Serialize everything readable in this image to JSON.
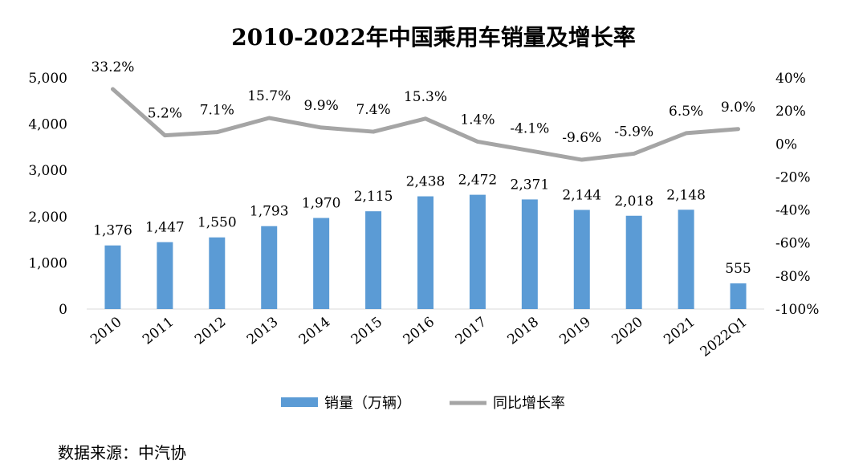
{
  "chart_data": {
    "type": "bar+line",
    "title": "2010-2022年中国乘用车销量及增长率",
    "categories": [
      "2010",
      "2011",
      "2012",
      "2013",
      "2014",
      "2015",
      "2016",
      "2017",
      "2018",
      "2019",
      "2020",
      "2021",
      "2022Q1"
    ],
    "series": [
      {
        "name": "销量（万辆）",
        "type": "bar",
        "axis": "left",
        "color": "#5B9BD5",
        "values": [
          1376,
          1447,
          1550,
          1793,
          1970,
          2115,
          2438,
          2472,
          2371,
          2144,
          2018,
          2148,
          555
        ],
        "labels": [
          "1,376",
          "1,447",
          "1,550",
          "1,793",
          "1,970",
          "2,115",
          "2,438",
          "2,472",
          "2,371",
          "2,144",
          "2,018",
          "2,148",
          "555"
        ]
      },
      {
        "name": "同比增长率",
        "type": "line",
        "axis": "right",
        "color": "#A5A5A5",
        "values": [
          33.2,
          5.2,
          7.1,
          15.7,
          9.9,
          7.4,
          15.3,
          1.4,
          -4.1,
          -9.6,
          -5.9,
          6.5,
          9.0
        ],
        "labels": [
          "33.2%",
          "5.2%",
          "7.1%",
          "15.7%",
          "9.9%",
          "7.4%",
          "15.3%",
          "1.4%",
          "-4.1%",
          "-9.6%",
          "-5.9%",
          "6.5%",
          "9.0%"
        ]
      }
    ],
    "y_left": {
      "range": [
        0,
        5000
      ],
      "ticks": [
        0,
        1000,
        2000,
        3000,
        4000,
        5000
      ],
      "tick_labels": [
        "0",
        "1,000",
        "2,000",
        "3,000",
        "4,000",
        "5,000"
      ]
    },
    "y_right": {
      "range": [
        -100,
        40
      ],
      "ticks": [
        -100,
        -80,
        -60,
        -40,
        -20,
        0,
        20,
        40
      ],
      "tick_labels": [
        "-100%",
        "-80%",
        "-60%",
        "-40%",
        "-20%",
        "0%",
        "20%",
        "40%"
      ]
    },
    "grid": false,
    "legend_position": "bottom"
  },
  "source_note": "数据来源：中汽协"
}
